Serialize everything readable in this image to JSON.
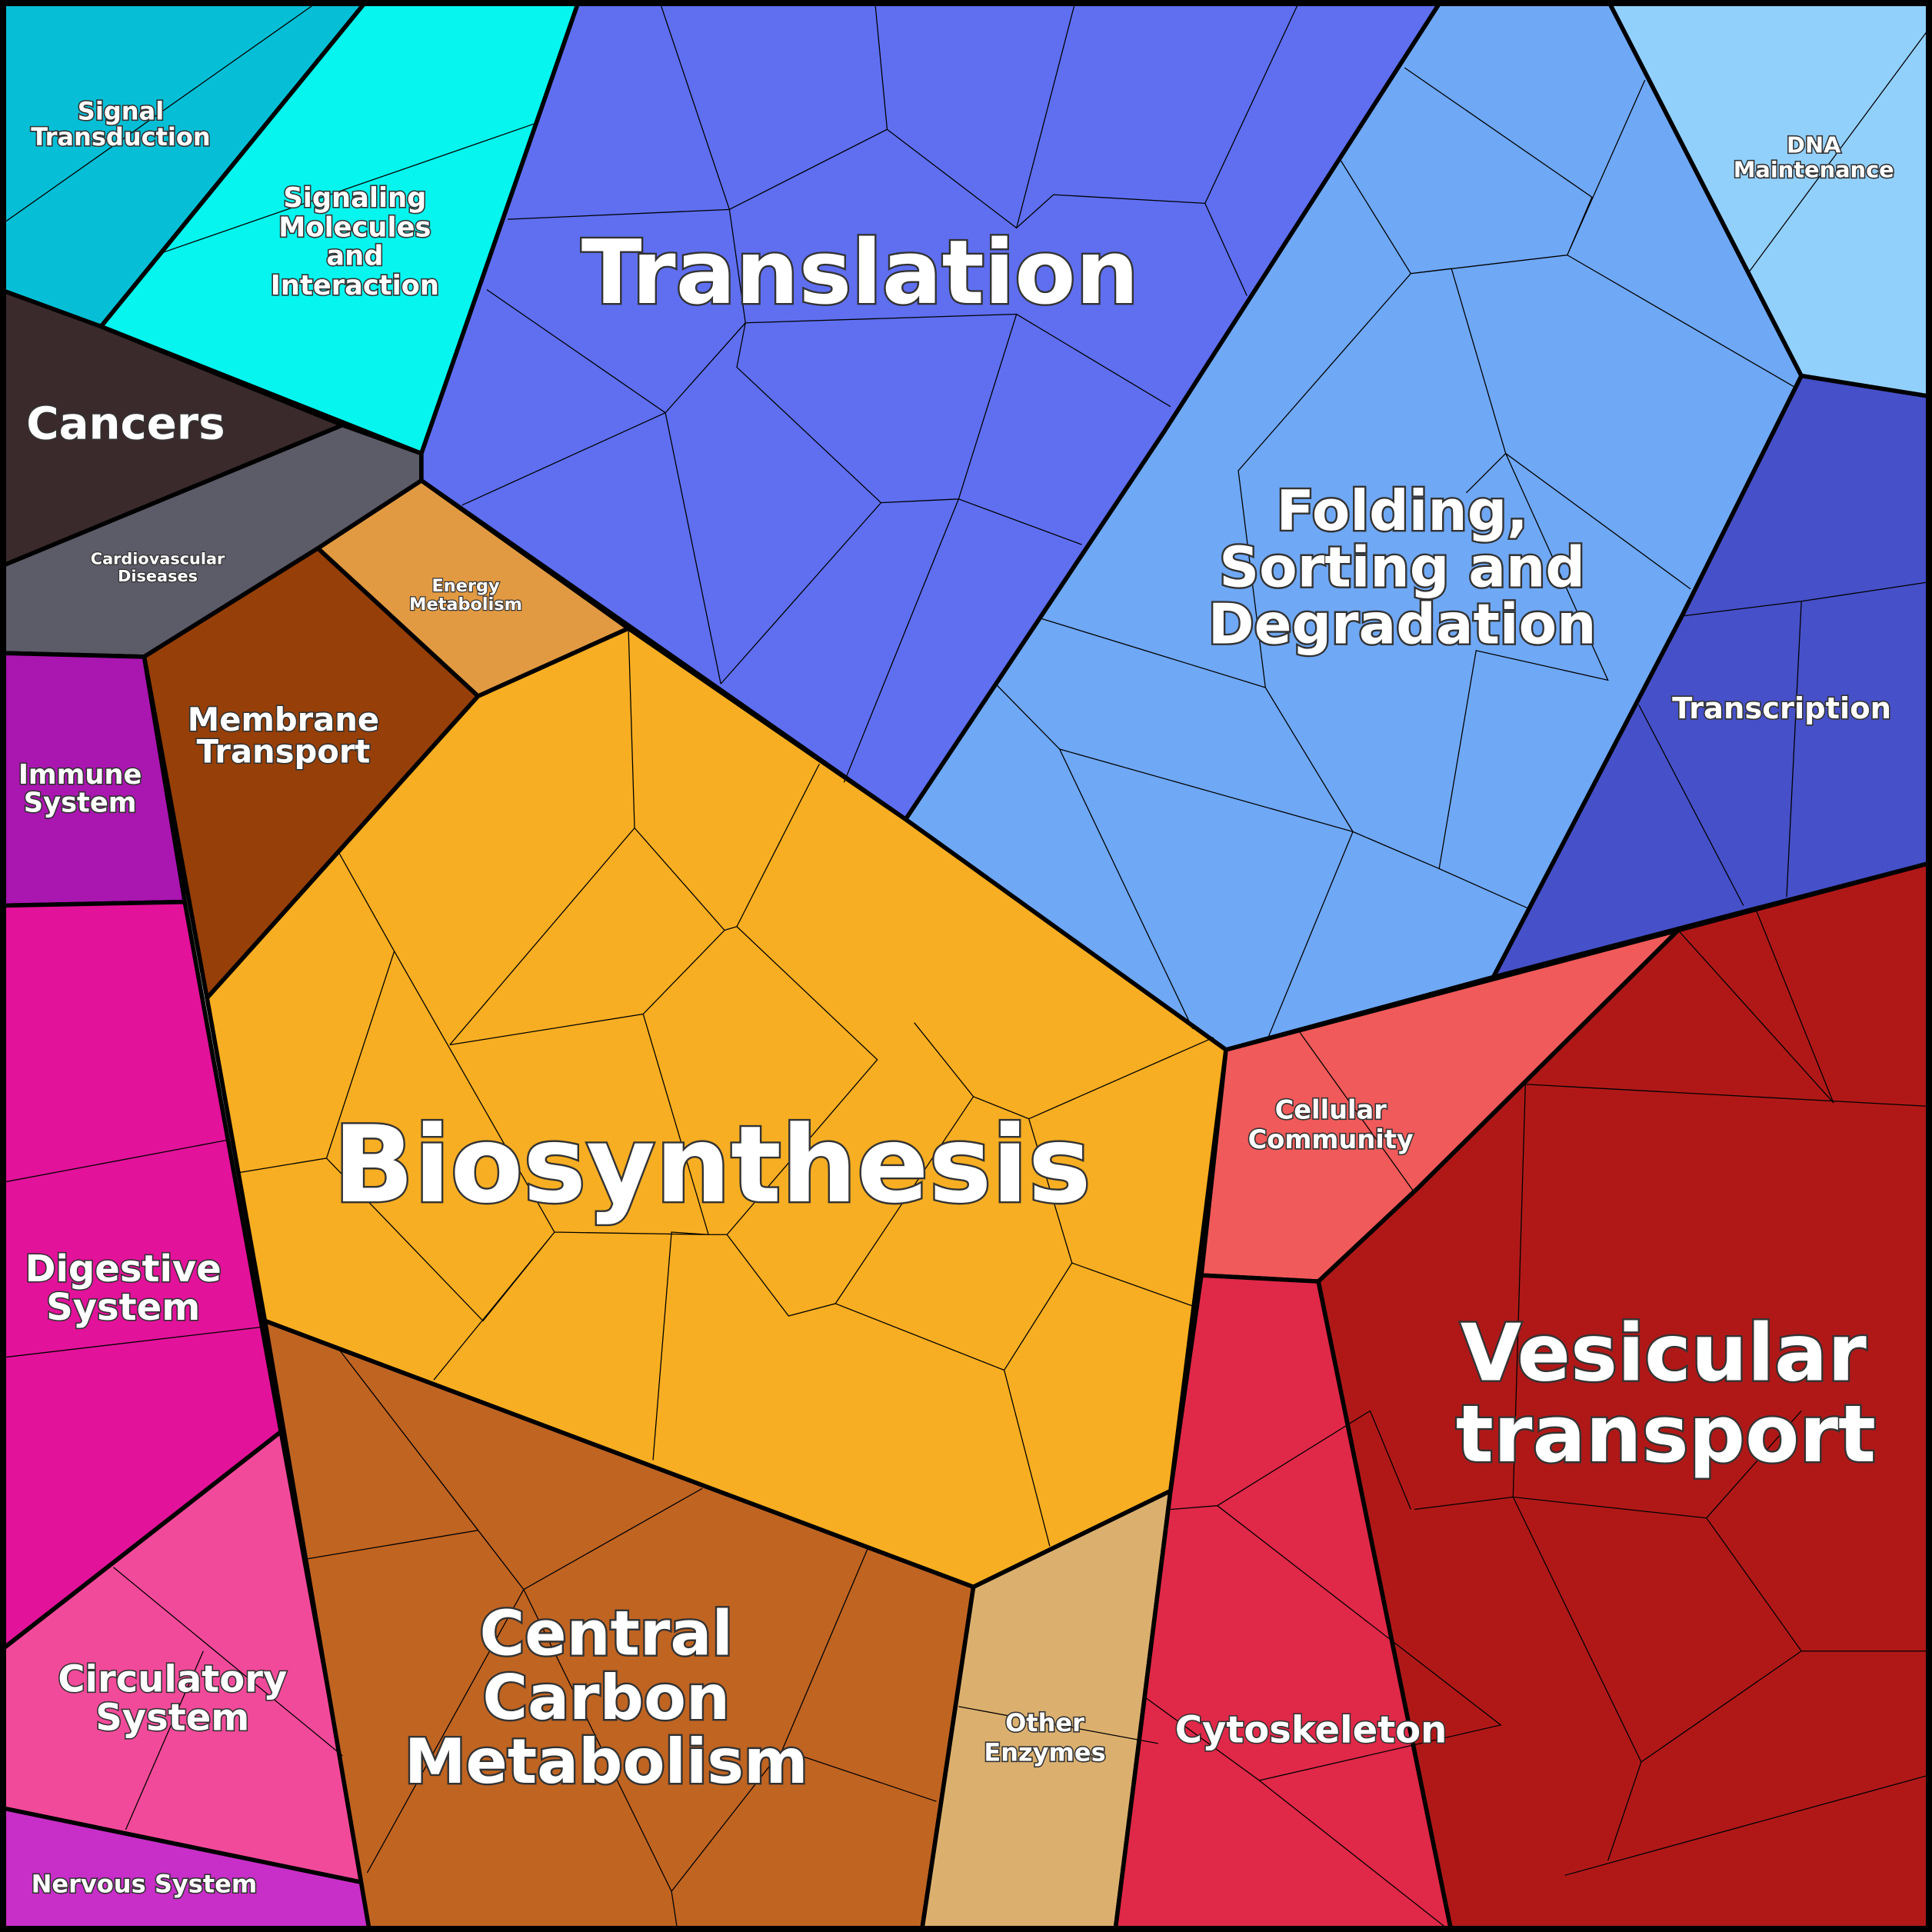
{
  "regions": [
    {
      "lines": [
        "Signal",
        "Transduction"
      ]
    },
    {
      "lines": [
        "Signaling",
        "Molecules",
        "and",
        "Interaction"
      ]
    },
    {
      "lines": [
        "Cancers"
      ]
    },
    {
      "lines": [
        "Cardiovascular",
        "Diseases"
      ]
    },
    {
      "lines": [
        "Translation"
      ]
    },
    {
      "lines": [
        "Folding,",
        "Sorting and",
        "Degradation"
      ]
    },
    {
      "lines": [
        "DNA",
        "Maintenance"
      ]
    },
    {
      "lines": [
        "Transcription"
      ]
    },
    {
      "lines": [
        "Energy",
        "Metabolism"
      ]
    },
    {
      "lines": [
        "Membrane",
        "Transport"
      ]
    },
    {
      "lines": [
        "Immune",
        "System"
      ]
    },
    {
      "lines": [
        "Digestive",
        "System"
      ]
    },
    {
      "lines": [
        "Circulatory",
        "System"
      ]
    },
    {
      "lines": [
        "Nervous System"
      ]
    },
    {
      "lines": [
        "Biosynthesis"
      ]
    },
    {
      "lines": [
        "Central",
        "Carbon",
        "Metabolism"
      ]
    },
    {
      "lines": [
        "Other",
        "Enzymes"
      ]
    },
    {
      "lines": [
        "Cellular",
        "Community"
      ]
    },
    {
      "lines": [
        "Cytoskeleton"
      ]
    },
    {
      "lines": [
        "Vesicular",
        "transport"
      ]
    }
  ]
}
